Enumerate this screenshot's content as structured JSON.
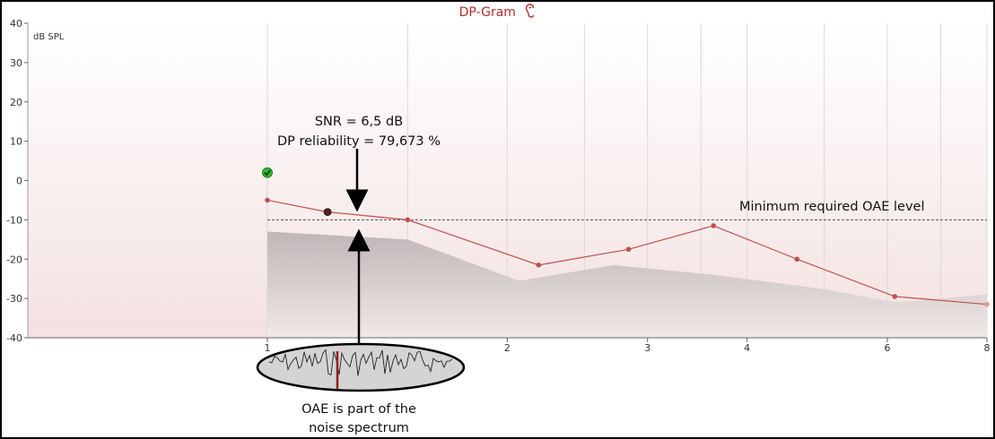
{
  "chart_data": {
    "type": "line",
    "title": "DP-Gram",
    "title_icon": "ear-icon",
    "ylabel": "dB SPL",
    "xlabel": "",
    "x_scale": "log",
    "xlim": [
      1,
      8
    ],
    "ylim": [
      -40,
      40
    ],
    "y_ticks": [
      "40",
      "30",
      "20",
      "10",
      "0",
      "-10",
      "-20",
      "-30",
      "-40"
    ],
    "x_ticks": [
      {
        "label": "1",
        "value": 1
      },
      {
        "label": "2",
        "value": 2
      },
      {
        "label": "3",
        "value": 3
      },
      {
        "label": "4",
        "value": 4
      },
      {
        "label": "6",
        "value": 6
      },
      {
        "label": "8",
        "value": 8
      }
    ],
    "grid_x_values": [
      1,
      1.5,
      2,
      2.5,
      3,
      3.5,
      4,
      5,
      6,
      7,
      8
    ],
    "series": [
      {
        "color": "#c0504d",
        "points": [
          {
            "x": 1.0,
            "y": -5
          },
          {
            "x": 1.19,
            "y": -8
          },
          {
            "x": 1.5,
            "y": -10
          },
          {
            "x": 2.19,
            "y": -21.5
          },
          {
            "x": 2.84,
            "y": -17.5
          },
          {
            "x": 3.63,
            "y": -11.5
          },
          {
            "x": 4.62,
            "y": -20
          },
          {
            "x": 6.13,
            "y": -29.5
          },
          {
            "x": 8.0,
            "y": -31.5
          }
        ]
      }
    ],
    "noise_floor": [
      {
        "x": 1.0,
        "y": -13
      },
      {
        "x": 1.5,
        "y": -15
      },
      {
        "x": 2.07,
        "y": -25.5
      },
      {
        "x": 2.72,
        "y": -21.5
      },
      {
        "x": 3.63,
        "y": -24
      },
      {
        "x": 4.95,
        "y": -27.5
      },
      {
        "x": 6.13,
        "y": -31
      },
      {
        "x": 8.0,
        "y": -29
      }
    ],
    "min_required_level": -10,
    "highlight_point": {
      "x": 1.19,
      "y": -8
    },
    "pass_marker": {
      "x": 1.0,
      "y": 2,
      "icon": "checkmark-icon",
      "color": "#2db82d"
    },
    "colors": {
      "line": "#c0504d",
      "noise": "#c8c1c1",
      "title": "#b12a2a",
      "grid": "#d9d9d9",
      "background_top": "#ffffff",
      "background_bottom": "#f5e4e4"
    }
  },
  "annotations": {
    "snr": "SNR = 6,5 dB",
    "reliability": "DP reliability = 79,673 %",
    "min_level": "Minimum required OAE level",
    "noise_line1": "OAE is part of the",
    "noise_line2": "noise spectrum"
  }
}
